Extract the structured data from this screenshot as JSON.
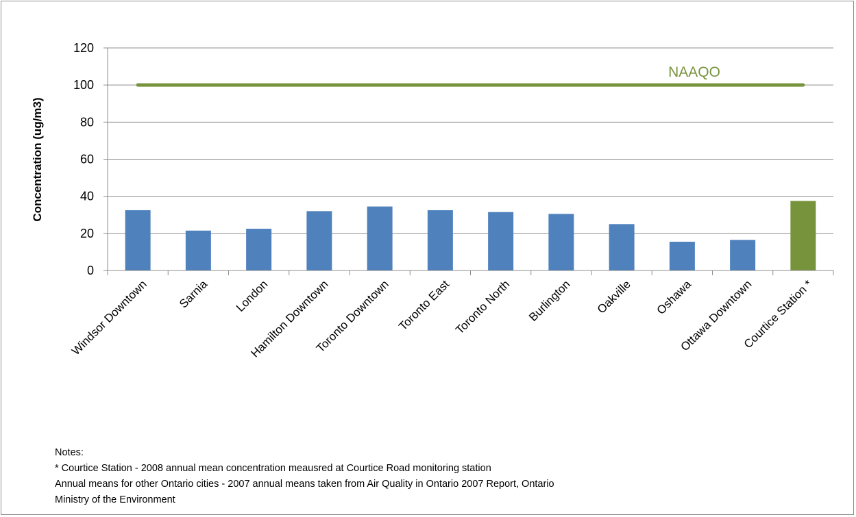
{
  "chart_data": {
    "type": "bar",
    "categories": [
      "Windsor Downtown",
      "Sarnia",
      "London",
      "Hamilton Downtown",
      "Toronto Downtown",
      "Toronto East",
      "Toronto North",
      "Burlington",
      "Oakville",
      "Oshawa",
      "Ottawa Downtown",
      "Courtice Station *"
    ],
    "values": [
      32.5,
      21.5,
      22.5,
      32,
      34.5,
      32.5,
      31.5,
      30.5,
      25,
      15.5,
      16.5,
      37.5
    ],
    "bar_colors": [
      "#4f81bd",
      "#4f81bd",
      "#4f81bd",
      "#4f81bd",
      "#4f81bd",
      "#4f81bd",
      "#4f81bd",
      "#4f81bd",
      "#4f81bd",
      "#4f81bd",
      "#4f81bd",
      "#77933c"
    ],
    "ylabel": "Concentration (ug/m3)",
    "ylim": [
      0,
      120
    ],
    "yticks": [
      0,
      20,
      40,
      60,
      80,
      100,
      120
    ],
    "grid": true,
    "reference_line": {
      "label": "NAAQO",
      "value": 100,
      "color": "#77933c"
    }
  },
  "notes": {
    "heading": "Notes:",
    "lines": [
      "* Courtice Station - 2008 annual mean concentration meausred at Courtice Road monitoring station",
      "Annual means for other Ontario cities - 2007 annual means  taken from  Air Quality in Ontario 2007 Report, Ontario",
      "Ministry of the Environment"
    ]
  }
}
